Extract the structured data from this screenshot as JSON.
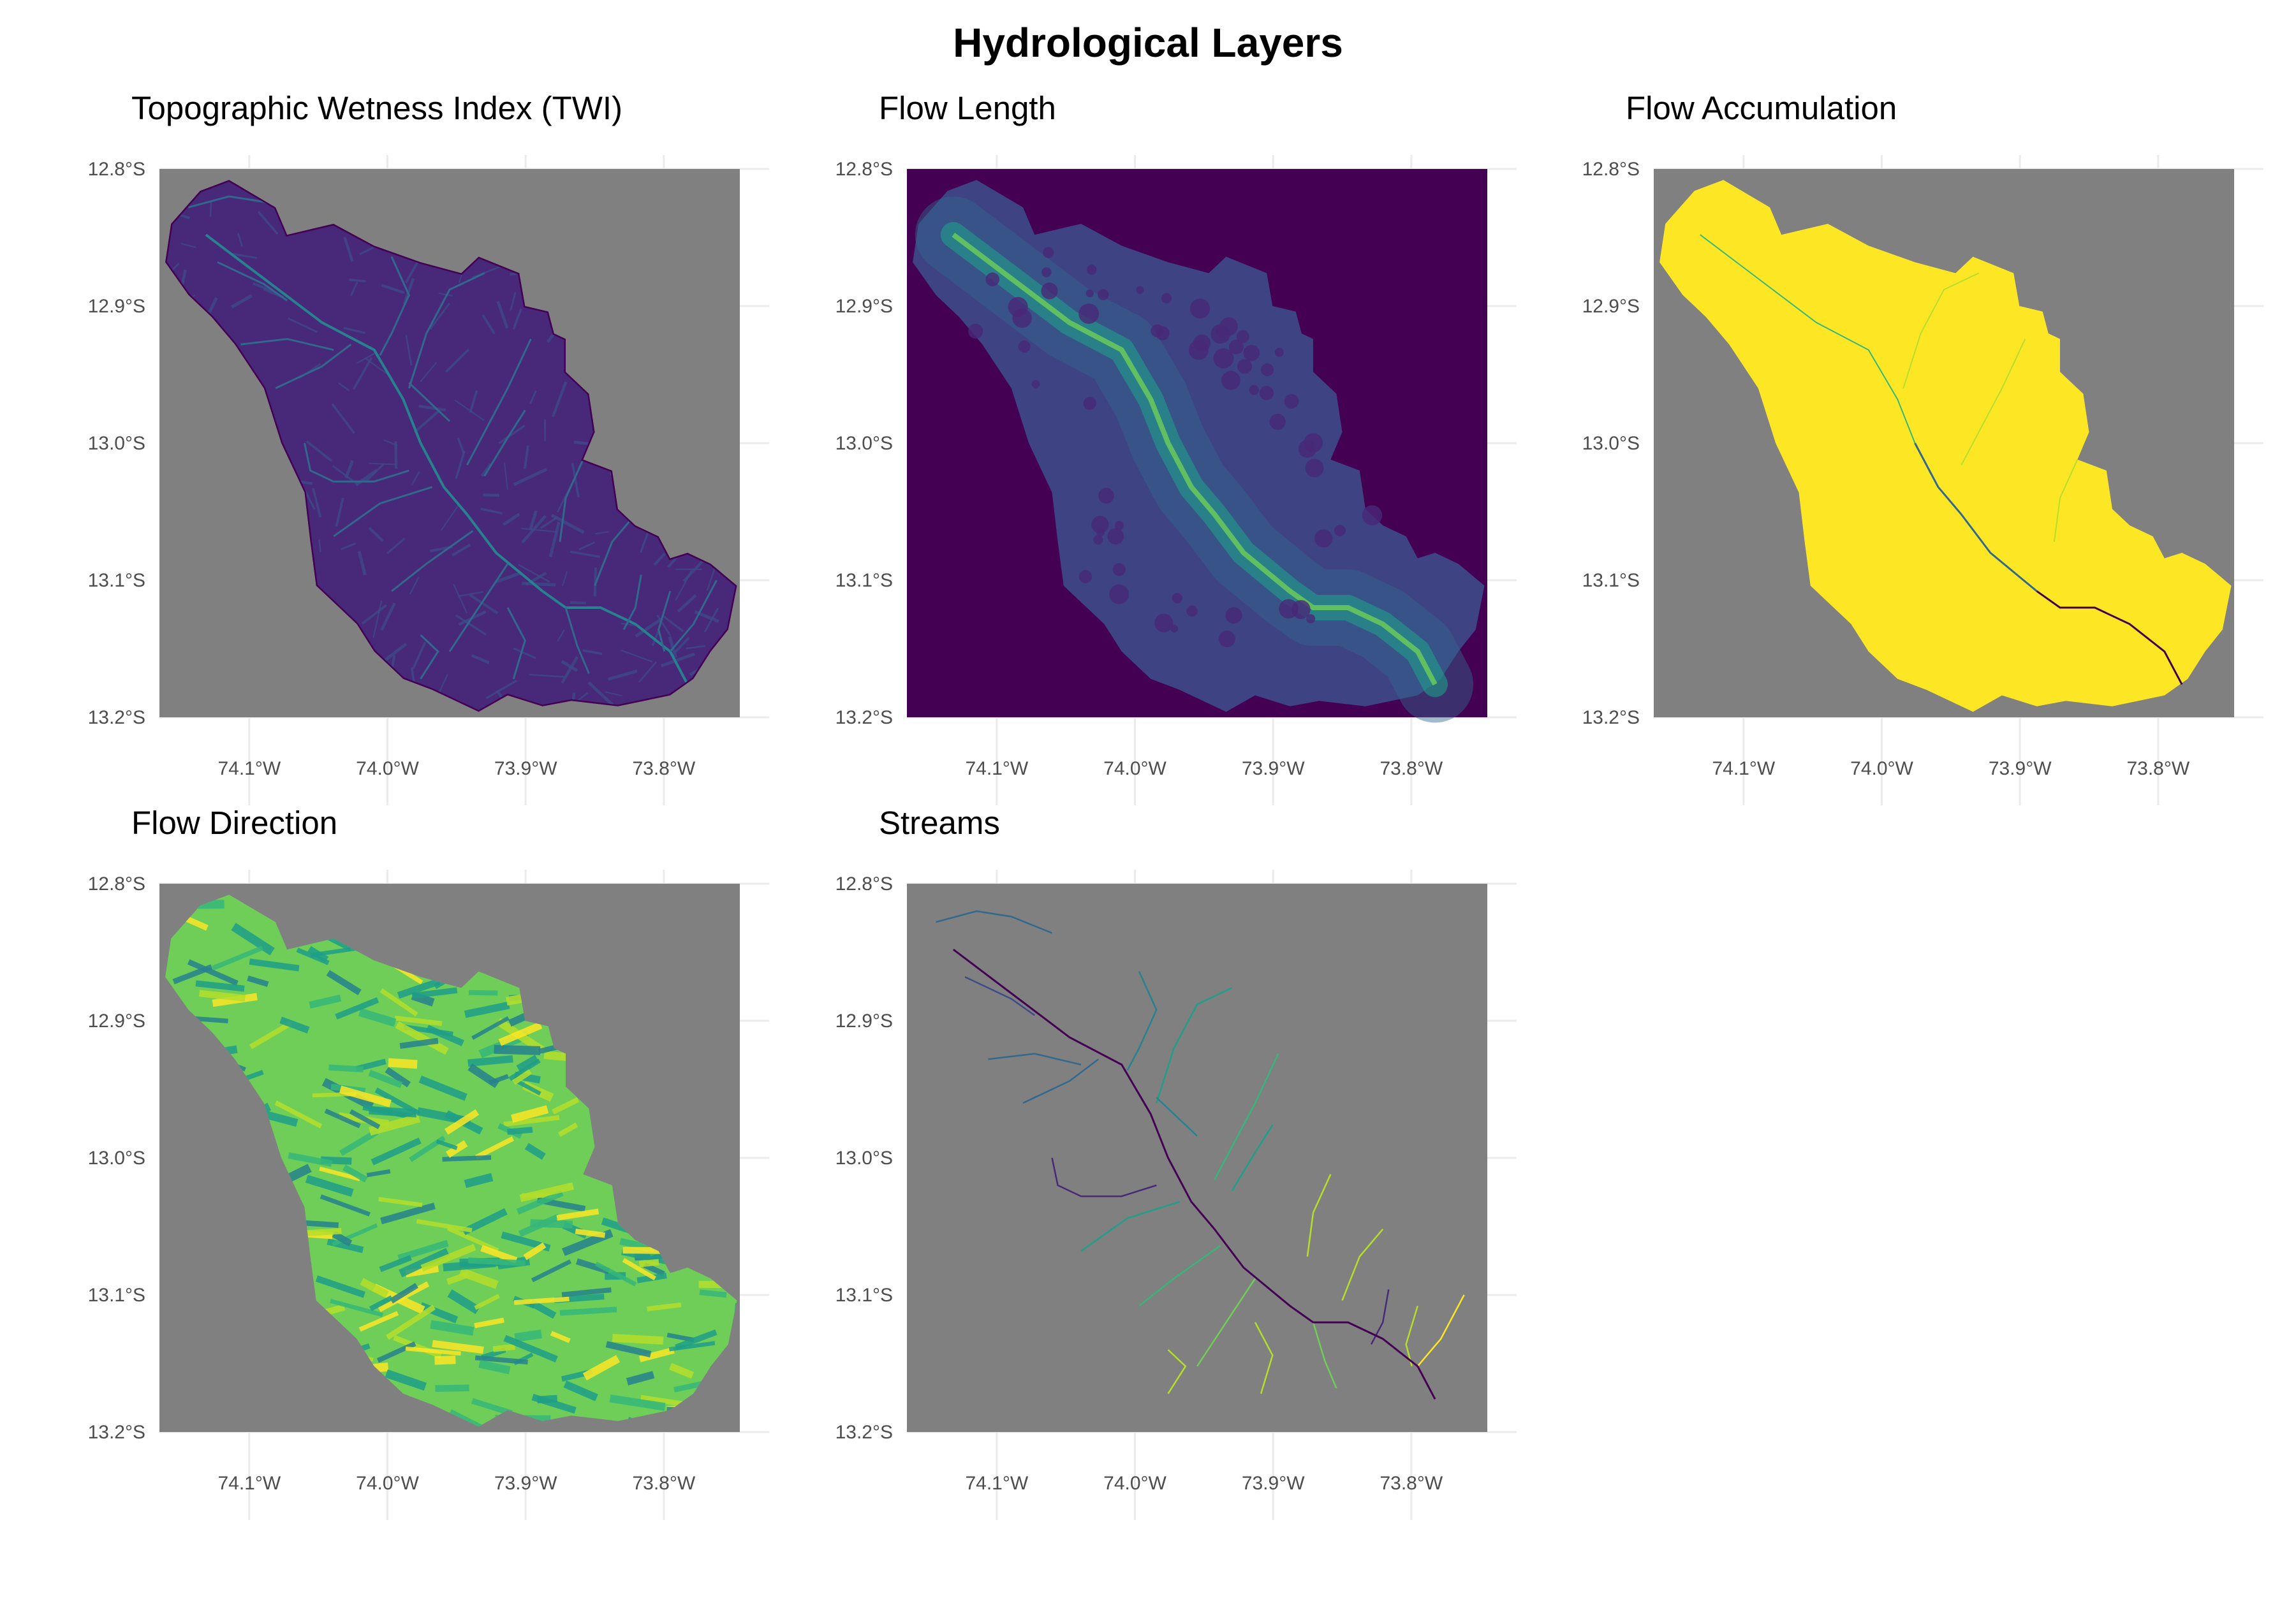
{
  "title": "Hydrological Layers",
  "colors": {
    "na_background": "#808080",
    "gridline": "#ebebeb",
    "viridis": [
      "#440154",
      "#482878",
      "#3e4a89",
      "#31688e",
      "#26828e",
      "#1f9e89",
      "#35b779",
      "#6ece58",
      "#b5de2b",
      "#fde725"
    ]
  },
  "chart_data": [
    {
      "type": "heatmap",
      "title": "Topographic Wetness Index (TWI)",
      "colormap": "viridis",
      "background": "NA shown grey",
      "xlim": [
        -74.165,
        -73.745
      ],
      "ylim": [
        -13.2,
        -12.8
      ],
      "x_ticks": [
        -74.1,
        -74.0,
        -73.9,
        -73.8
      ],
      "x_tick_labels": [
        "74.1°W",
        "74.0°W",
        "73.9°W",
        "73.8°W"
      ],
      "y_ticks": [
        -12.8,
        -12.9,
        -13.0,
        -13.1,
        -13.2
      ],
      "y_tick_labels": [
        "12.8°S",
        "12.9°S",
        "13.0°S",
        "13.1°S",
        "13.2°S"
      ],
      "grid": true
    },
    {
      "type": "heatmap",
      "title": "Flow Length",
      "colormap": "viridis",
      "xlim": [
        -74.165,
        -73.745
      ],
      "ylim": [
        -13.2,
        -12.8
      ],
      "x_ticks": [
        -74.1,
        -74.0,
        -73.9,
        -73.8
      ],
      "x_tick_labels": [
        "74.1°W",
        "74.0°W",
        "73.9°W",
        "73.8°W"
      ],
      "y_ticks": [
        -12.8,
        -12.9,
        -13.0,
        -13.1,
        -13.2
      ],
      "y_tick_labels": [
        "12.8°S",
        "12.9°S",
        "13.0°S",
        "13.1°S",
        "13.2°S"
      ],
      "grid": true
    },
    {
      "type": "heatmap",
      "title": "Flow Accumulation",
      "colormap": "viridis",
      "xlim": [
        -74.165,
        -73.745
      ],
      "ylim": [
        -13.2,
        -12.8
      ],
      "x_ticks": [
        -74.1,
        -74.0,
        -73.9,
        -73.8
      ],
      "x_tick_labels": [
        "74.1°W",
        "74.0°W",
        "73.9°W",
        "73.8°W"
      ],
      "y_ticks": [
        -12.8,
        -12.9,
        -13.0,
        -13.1,
        -13.2
      ],
      "y_tick_labels": [
        "12.8°S",
        "12.9°S",
        "13.0°S",
        "13.1°S",
        "13.2°S"
      ],
      "grid": true
    },
    {
      "type": "heatmap",
      "title": "Flow Direction",
      "colormap": "viridis",
      "xlim": [
        -74.165,
        -73.745
      ],
      "ylim": [
        -13.2,
        -12.8
      ],
      "x_ticks": [
        -74.1,
        -74.0,
        -73.9,
        -73.8
      ],
      "x_tick_labels": [
        "74.1°W",
        "74.0°W",
        "73.9°W",
        "73.8°W"
      ],
      "y_ticks": [
        -12.8,
        -12.9,
        -13.0,
        -13.1,
        -13.2
      ],
      "y_tick_labels": [
        "12.8°S",
        "12.9°S",
        "13.0°S",
        "13.1°S",
        "13.2°S"
      ],
      "grid": true
    },
    {
      "type": "heatmap",
      "title": "Streams",
      "colormap": "viridis",
      "xlim": [
        -74.165,
        -73.745
      ],
      "ylim": [
        -13.2,
        -12.8
      ],
      "x_ticks": [
        -74.1,
        -74.0,
        -73.9,
        -73.8
      ],
      "x_tick_labels": [
        "74.1°W",
        "74.0°W",
        "73.9°W",
        "73.8°W"
      ],
      "y_ticks": [
        -12.8,
        -12.9,
        -13.0,
        -13.1,
        -13.2
      ],
      "y_tick_labels": [
        "12.8°S",
        "12.9°S",
        "13.0°S",
        "13.1°S",
        "13.2°S"
      ],
      "grid": true
    }
  ]
}
